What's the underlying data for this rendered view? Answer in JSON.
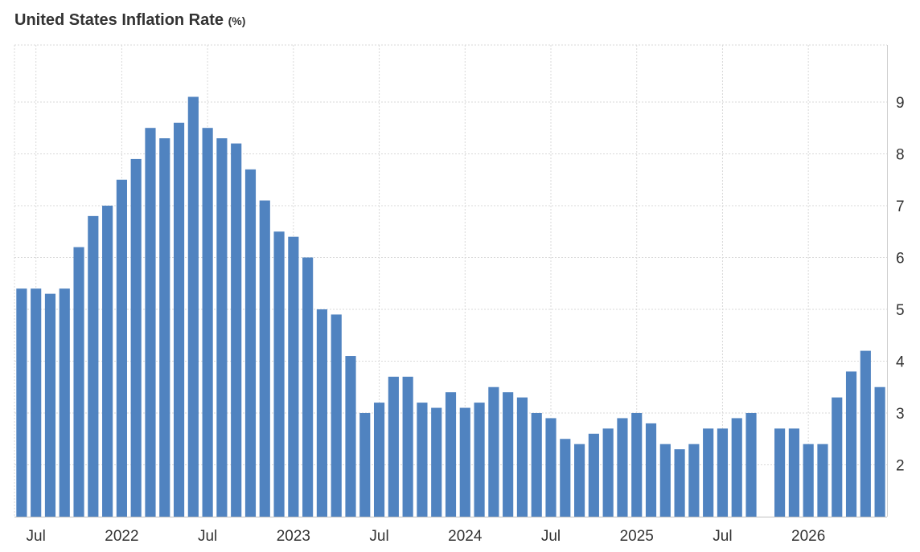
{
  "chart_data": {
    "type": "bar",
    "title": "United States Inflation Rate",
    "unit": "(%)",
    "x": [
      "2021-06",
      "2021-07",
      "2021-08",
      "2021-09",
      "2021-10",
      "2021-11",
      "2021-12",
      "2022-01",
      "2022-02",
      "2022-03",
      "2022-04",
      "2022-05",
      "2022-06",
      "2022-07",
      "2022-08",
      "2022-09",
      "2022-10",
      "2022-11",
      "2022-12",
      "2023-01",
      "2023-02",
      "2023-03",
      "2023-04",
      "2023-05",
      "2023-06",
      "2023-07",
      "2023-08",
      "2023-09",
      "2023-10",
      "2023-11",
      "2023-12",
      "2024-01",
      "2024-02",
      "2024-03",
      "2024-04",
      "2024-05",
      "2024-06",
      "2024-07",
      "2024-08",
      "2024-09",
      "2024-10",
      "2024-11",
      "2024-12",
      "2025-01",
      "2025-02",
      "2025-03",
      "2025-04",
      "2025-05",
      "2025-06",
      "2025-07",
      "2025-08",
      "2025-09",
      "2025-10",
      "2025-11",
      "2025-12",
      "2026-01",
      "2026-02",
      "2026-03",
      "2026-04",
      "2026-05",
      "2026-06"
    ],
    "values": [
      5.4,
      5.4,
      5.3,
      5.4,
      6.2,
      6.8,
      7.0,
      7.5,
      7.9,
      8.5,
      8.3,
      8.6,
      9.1,
      8.5,
      8.3,
      8.2,
      7.7,
      7.1,
      6.5,
      6.4,
      6.0,
      5.0,
      4.9,
      4.1,
      3.0,
      3.2,
      3.7,
      3.7,
      3.2,
      3.1,
      3.4,
      3.1,
      3.2,
      3.5,
      3.4,
      3.3,
      3.0,
      2.9,
      2.5,
      2.4,
      2.6,
      2.7,
      2.9,
      3.0,
      2.8,
      2.4,
      2.3,
      2.4,
      2.7,
      2.7,
      2.9,
      3.0,
      null,
      2.7,
      2.7,
      2.4,
      2.4,
      3.3,
      3.8,
      4.2,
      3.5
    ],
    "x_tick_labels": [
      {
        "index": 1,
        "label": "Jul"
      },
      {
        "index": 7,
        "label": "2022"
      },
      {
        "index": 13,
        "label": "Jul"
      },
      {
        "index": 19,
        "label": "2023"
      },
      {
        "index": 25,
        "label": "Jul"
      },
      {
        "index": 31,
        "label": "2024"
      },
      {
        "index": 37,
        "label": "Jul"
      },
      {
        "index": 43,
        "label": "2025"
      },
      {
        "index": 49,
        "label": "Jul"
      },
      {
        "index": 55,
        "label": "2026"
      }
    ],
    "y_ticks": [
      2,
      3,
      4,
      5,
      6,
      7,
      8,
      9
    ],
    "ylim": [
      1.0,
      10.1
    ],
    "y_axis_side": "right",
    "grid": true,
    "bar_color": "#5083c0",
    "grid_color": "#d9d9d9"
  }
}
